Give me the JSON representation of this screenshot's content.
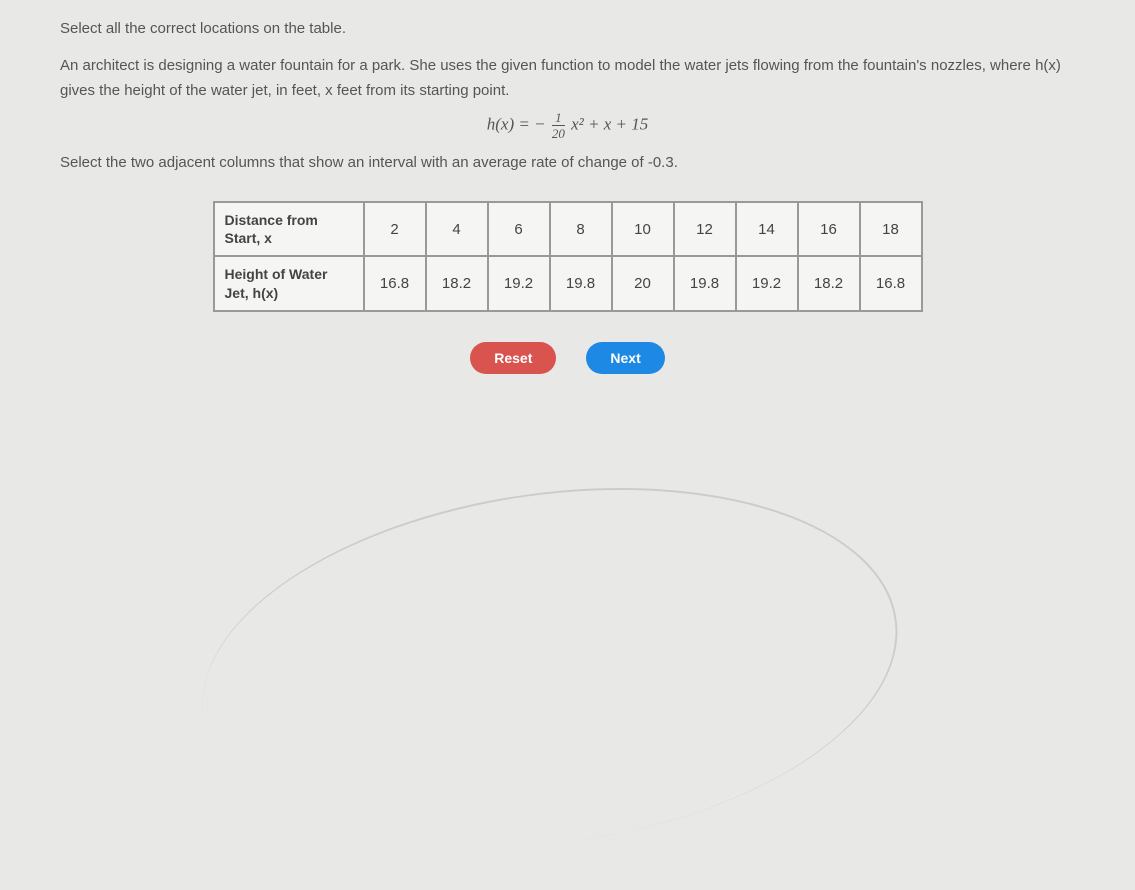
{
  "instruction": "Select all the correct locations on the table.",
  "problem": {
    "line1": "An architect is designing a water fountain for a park. She uses the given function to model the water jets flowing from the fountain's nozzles, where h(x)",
    "line2": "gives the height of the water jet, in feet, x feet from its starting point."
  },
  "formula": {
    "lhs": "h(x)",
    "eq": "=",
    "neg": "−",
    "frac_top": "1",
    "frac_bot": "20",
    "term1": "x²",
    "plus1": "+",
    "term2": "x",
    "plus2": "+",
    "constant": "15"
  },
  "sub_instruction": "Select the two adjacent columns that show an interval with an average rate of change of -0.3.",
  "table": {
    "row1_header": "Distance from Start, x",
    "row2_header": "Height of Water Jet, h(x)",
    "distances": [
      "2",
      "4",
      "6",
      "8",
      "10",
      "12",
      "14",
      "16",
      "18"
    ],
    "heights": [
      "16.8",
      "18.2",
      "19.2",
      "19.8",
      "20",
      "19.8",
      "19.2",
      "18.2",
      "16.8"
    ]
  },
  "buttons": {
    "reset": "Reset",
    "next": "Next"
  },
  "styles": {
    "bg_color": "#e8e8e6",
    "text_color": "#555",
    "border_color": "#999",
    "reset_color": "#d9534f",
    "next_color": "#1e88e5"
  }
}
